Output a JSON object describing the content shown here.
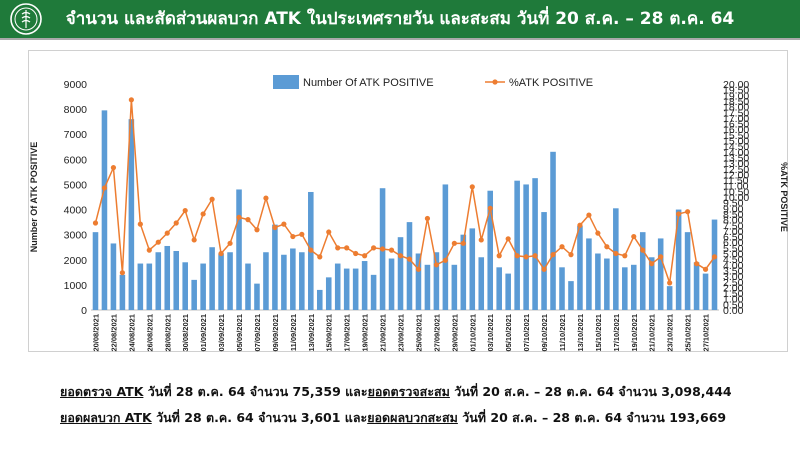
{
  "header": {
    "title": "จำนวน และสัดส่วนผลบวก ATK ในประเทศรายวัน และสะสม วันที่ 20 ส.ค. – 28 ต.ค. 64",
    "bg": "#1f7a3a"
  },
  "summary": {
    "line1": {
      "label": "ยอดตรวจ ATK",
      "text1": " วันที่ 28 ต.ค. 64 จำนวน 75,359 และ",
      "label2": "ยอดตรวจสะสม",
      "text2": " วันที่ 20 ส.ค. – 28 ต.ค. 64 จำนวน 3,098,444"
    },
    "line2": {
      "label": "ยอดผลบวก ATK",
      "text1": " วันที่ 28 ต.ค. 64 จำนวน 3,601 และ",
      "label2": "ยอดผลบวกสะสม",
      "text2": " วันที่ 20 ส.ค. – 28 ต.ค. 64 จำนวน 193,669"
    }
  },
  "chart_data": {
    "type": "bar",
    "ylabel": "Number Of ATK POSITIVE",
    "y2label": "%ATK POSITIVE",
    "ylim": [
      0,
      9000
    ],
    "y2lim": [
      0,
      20
    ],
    "legend_position": "top-center",
    "bar_color": "#5b9bd5",
    "line_color": "#ed7d31",
    "dates": [
      "20/08/2021",
      "21/08/2021",
      "22/08/2021",
      "23/08/2021",
      "24/08/2021",
      "25/08/2021",
      "26/08/2021",
      "27/08/2021",
      "28/08/2021",
      "29/08/2021",
      "30/08/2021",
      "31/08/2021",
      "01/09/2021",
      "02/09/2021",
      "03/09/2021",
      "04/09/2021",
      "05/09/2021",
      "06/09/2021",
      "07/09/2021",
      "08/09/2021",
      "09/09/2021",
      "10/09/2021",
      "11/09/2021",
      "12/09/2021",
      "13/09/2021",
      "14/09/2021",
      "15/09/2021",
      "16/09/2021",
      "17/09/2021",
      "18/09/2021",
      "19/09/2021",
      "20/09/2021",
      "21/09/2021",
      "22/09/2021",
      "23/09/2021",
      "24/09/2021",
      "25/09/2021",
      "26/09/2021",
      "27/09/2021",
      "28/09/2021",
      "29/09/2021",
      "30/09/2021",
      "01/10/2021",
      "02/10/2021",
      "03/10/2021",
      "04/10/2021",
      "05/10/2021",
      "06/10/2021",
      "07/10/2021",
      "08/10/2021",
      "09/10/2021",
      "10/10/2021",
      "11/10/2021",
      "12/10/2021",
      "13/10/2021",
      "14/10/2021",
      "15/10/2021",
      "16/10/2021",
      "17/10/2021",
      "18/10/2021",
      "19/10/2021",
      "20/10/2021",
      "21/10/2021",
      "22/10/2021",
      "23/10/2021",
      "24/10/2021",
      "25/10/2021",
      "26/10/2021",
      "27/10/2021",
      "28/10/2021"
    ],
    "series": [
      {
        "name": "Number Of ATK POSITIVE",
        "kind": "bar",
        "values": [
          3100,
          7950,
          2650,
          1400,
          7600,
          1850,
          1850,
          2300,
          2550,
          2350,
          1900,
          1200,
          1850,
          2500,
          2250,
          2300,
          4800,
          1850,
          1050,
          2300,
          3400,
          2200,
          2450,
          2300,
          4700,
          800,
          1300,
          1850,
          1650,
          1650,
          1950,
          1400,
          4850,
          2050,
          2900,
          3500,
          2250,
          1800,
          2300,
          5000,
          1800,
          3000,
          3250,
          2100,
          4750,
          1700,
          1450,
          5150,
          5000,
          5250,
          3900,
          6300,
          1700,
          1150,
          3350,
          2850,
          2250,
          2050,
          4050,
          1700,
          1800,
          3100,
          2100,
          2850,
          950,
          4000,
          3100,
          1900,
          1450,
          3601
        ]
      },
      {
        "name": "%ATK POSITIVE",
        "kind": "line",
        "values": [
          7.7,
          10.8,
          12.6,
          3.3,
          18.6,
          7.6,
          5.3,
          6.0,
          6.8,
          7.7,
          8.8,
          6.2,
          8.5,
          9.8,
          5.0,
          5.9,
          8.2,
          8.0,
          7.1,
          9.9,
          7.3,
          7.6,
          6.5,
          6.7,
          5.3,
          4.7,
          6.9,
          5.5,
          5.5,
          5.0,
          4.8,
          5.5,
          5.4,
          5.3,
          4.8,
          4.5,
          3.6,
          8.1,
          4.0,
          4.4,
          5.9,
          5.9,
          10.9,
          6.2,
          9.0,
          4.8,
          6.3,
          4.8,
          4.7,
          4.8,
          3.6,
          4.9,
          5.6,
          4.9,
          7.5,
          8.4,
          6.8,
          5.6,
          5.0,
          4.8,
          6.5,
          5.3,
          4.1,
          4.7,
          2.4,
          8.5,
          8.7,
          4.1,
          3.6,
          4.7
        ]
      }
    ]
  }
}
